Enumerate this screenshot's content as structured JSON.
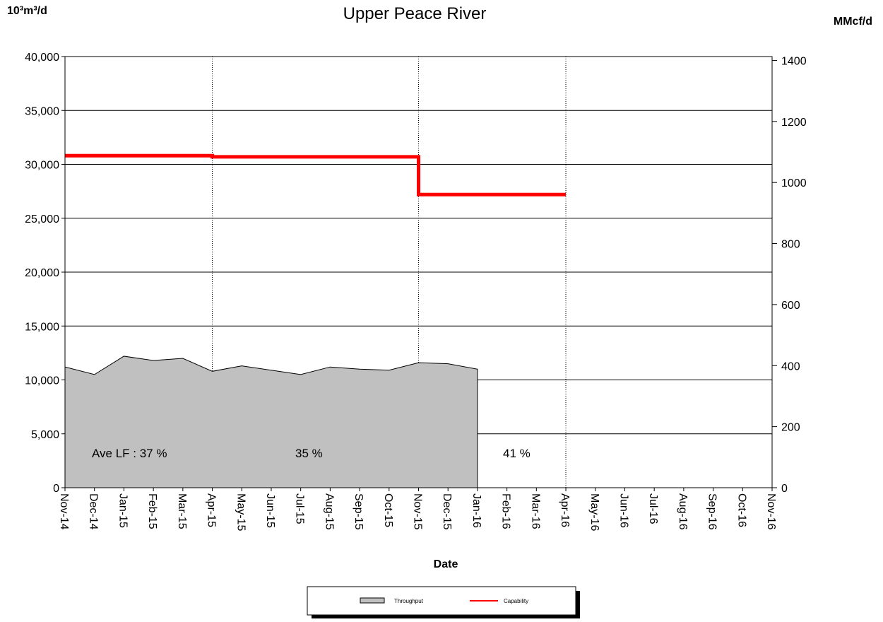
{
  "chart_data": {
    "type": "line",
    "subtitle": "Upper Peace River",
    "y_label": "10³m³/d",
    "y2_label": "MMcf/d",
    "x_label": "Date",
    "categories": [
      "Nov-14",
      "Dec-14",
      "Jan-15",
      "Feb-15",
      "Mar-15",
      "Apr-15",
      "May-15",
      "Jun-15",
      "Jul-15",
      "Aug-15",
      "Sep-15",
      "Oct-15",
      "Nov-15",
      "Dec-15",
      "Jan-16",
      "Feb-16",
      "Mar-16",
      "Apr-16",
      "May-16",
      "Jun-16",
      "Jul-16",
      "Aug-16",
      "Sep-16",
      "Oct-16",
      "Nov-16"
    ],
    "series": [
      {
        "name": "Throughput",
        "kind": "area",
        "color": "#c0c0c0",
        "values": [
          11200,
          10500,
          12200,
          11800,
          12000,
          10800,
          11300,
          10900,
          10500,
          11200,
          11000,
          10900,
          11600,
          11500,
          11000,
          null,
          null,
          null,
          null,
          null,
          null,
          null,
          null,
          null,
          null
        ]
      },
      {
        "name": "Capability",
        "kind": "step",
        "color": "#ff0000",
        "values": [
          30800,
          30800,
          30800,
          30800,
          30800,
          30700,
          30700,
          30700,
          30700,
          30700,
          30700,
          30700,
          27200,
          27200,
          27200,
          27200,
          27200,
          27200,
          null,
          null,
          null,
          null,
          null,
          null,
          null
        ]
      }
    ],
    "annotations": [
      "Ave LF : 37 %",
      "35 %",
      "41 %"
    ],
    "ylim": [
      0,
      40000
    ],
    "yticks": [
      0,
      {
        "value": 5000,
        "label": "5,000"
      },
      {
        "value": 10000,
        "label": "10,000"
      },
      {
        "value": 15000,
        "label": "15,000"
      },
      {
        "value": 20000,
        "label": "20,000"
      },
      {
        "value": 25000,
        "label": "25,000"
      },
      {
        "value": 30000,
        "label": "30,000"
      },
      {
        "value": 35000,
        "label": "35,000"
      },
      {
        "value": 40000,
        "label": "40,000"
      }
    ],
    "y2lim": [
      0,
      1412.6
    ],
    "y2ticks": [
      0,
      200,
      400,
      600,
      800,
      1000,
      1200,
      1400
    ],
    "grid": true
  }
}
